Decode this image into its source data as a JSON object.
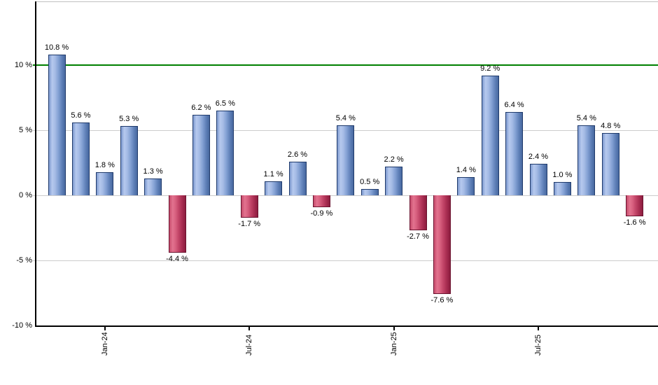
{
  "chart_data": {
    "type": "bar",
    "description": "Monthly percent-change bar chart",
    "values": [
      10.8,
      5.6,
      1.8,
      5.3,
      1.3,
      -4.4,
      6.2,
      6.5,
      -1.7,
      1.1,
      2.6,
      -0.9,
      5.4,
      0.5,
      2.2,
      -2.7,
      -7.6,
      1.4,
      9.2,
      6.4,
      2.4,
      1.0,
      5.4,
      4.8,
      -1.6
    ],
    "bar_labels": [
      "10.8 %",
      "5.6 %",
      "1.8 %",
      "5.3 %",
      "1.3 %",
      "-4.4 %",
      "6.2 %",
      "6.5 %",
      "-1.7 %",
      "1.1 %",
      "2.6 %",
      "-0.9 %",
      "5.4 %",
      "0.5 %",
      "2.2 %",
      "-2.7 %",
      "-7.6 %",
      "1.4 %",
      "9.2 %",
      "6.4 %",
      "2.4 %",
      "1.0 %",
      "5.4 %",
      "4.8 %",
      "-1.6 %"
    ],
    "y_ticks": [
      "10 %",
      "5 %",
      "0 %",
      "-5 %",
      "-10 %"
    ],
    "y_tick_values": [
      10,
      5,
      0,
      -5,
      -10
    ],
    "ylim": [
      -10,
      14.9
    ],
    "x_ticks": [
      {
        "label": "Jan-24",
        "bar_index": 2
      },
      {
        "label": "Jul-24",
        "bar_index": 8
      },
      {
        "label": "Jan-25",
        "bar_index": 14
      },
      {
        "label": "Jul-25",
        "bar_index": 20
      }
    ],
    "reference_line": {
      "value": 10,
      "color": "#008000"
    },
    "grid": "horizontal gridlines every 5%",
    "legend": "none",
    "colors": {
      "background": "#ffffff",
      "positive_bar_gradient": [
        "#7d99cf",
        "#b6c9ee",
        "#a5bbe5",
        "#84a1d4",
        "#5f80b8",
        "#47689f"
      ],
      "positive_bar_border": "#1f3a6b",
      "negative_bar_gradient": [
        "#c54a6b",
        "#e2738f",
        "#d8607f",
        "#c14467",
        "#a62c50",
        "#8c1d3f"
      ],
      "negative_bar_border": "#6b1430",
      "gridline": "#cccccc",
      "plot_top_border": "#c0c0c0",
      "axis": "#000000",
      "text": "#000000"
    }
  }
}
